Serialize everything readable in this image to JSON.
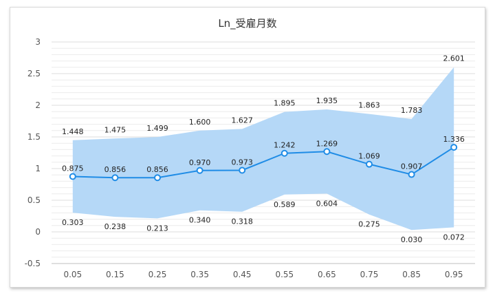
{
  "chart_data": {
    "type": "line",
    "title": "Ln_受雇月数",
    "categories": [
      "0.05",
      "0.15",
      "0.25",
      "0.35",
      "0.45",
      "0.55",
      "0.65",
      "0.75",
      "0.85",
      "0.95"
    ],
    "series": [
      {
        "values": [
          0.875,
          0.856,
          0.856,
          0.97,
          0.973,
          1.242,
          1.269,
          1.069,
          0.907,
          1.336
        ],
        "labels": [
          "0.875",
          "0.856",
          "0.856",
          "0.970",
          "0.973",
          "1.242",
          "1.269",
          "1.069",
          "0.907",
          "1.336"
        ]
      }
    ],
    "band": {
      "upper": [
        1.448,
        1.475,
        1.499,
        1.6,
        1.627,
        1.895,
        1.935,
        1.863,
        1.783,
        2.601
      ],
      "upper_labels": [
        "1.448",
        "1.475",
        "1.499",
        "1.600",
        "1.627",
        "1.895",
        "1.935",
        "1.863",
        "1.783",
        "2.601"
      ],
      "lower": [
        0.303,
        0.238,
        0.213,
        0.34,
        0.318,
        0.589,
        0.604,
        0.275,
        0.03,
        0.072
      ],
      "lower_labels": [
        "0.303",
        "0.238",
        "0.213",
        "0.340",
        "0.318",
        "0.589",
        "0.604",
        "0.275",
        "0.030",
        "0.072"
      ]
    },
    "ylim": [
      -0.5,
      3
    ],
    "yticks": [
      "-0.5",
      "0",
      "0.5",
      "1",
      "1.5",
      "2",
      "2.5",
      "3"
    ],
    "grid": true,
    "colors": {
      "line": "#1f8ce6",
      "band": "#b5d8f7",
      "grid": "#ececec",
      "marker_fill": "#ffffff"
    }
  }
}
